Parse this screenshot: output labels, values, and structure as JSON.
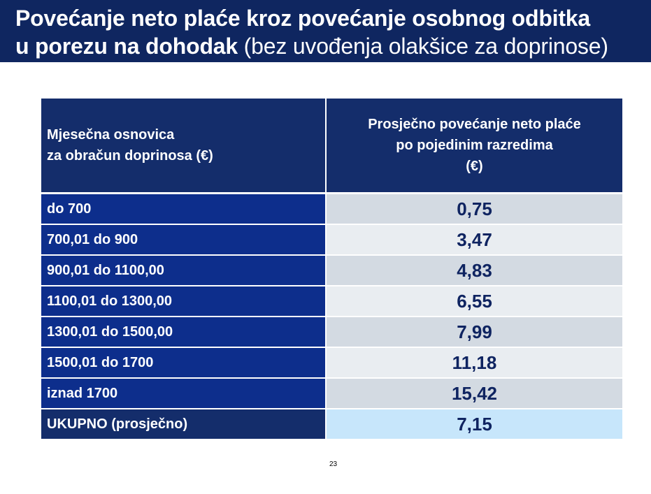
{
  "title": {
    "line1": "Povećanje neto plaće kroz povećanje osobnog odbitka",
    "line2_bold": "u porezu na dohodak",
    "line2_normal": " (bez uvođenja olakšice za doprinose)"
  },
  "table": {
    "header_left_line1": "Mjesečna osnovica",
    "header_left_line2": "za obračun doprinosa (€)",
    "header_right_line1": "Prosječno povećanje neto plaće",
    "header_right_line2": "po pojedinim razredima",
    "header_right_line3": "(€)",
    "rows": [
      {
        "label": "do 700",
        "value": "0,75"
      },
      {
        "label": "700,01 do 900",
        "value": "3,47"
      },
      {
        "label": "900,01 do 1100,00",
        "value": "4,83"
      },
      {
        "label": "1100,01 do 1300,00",
        "value": "6,55"
      },
      {
        "label": "1300,01 do 1500,00",
        "value": "7,99"
      },
      {
        "label": "1500,01 do 1700",
        "value": "11,18"
      },
      {
        "label": "iznad 1700",
        "value": "15,42"
      }
    ],
    "total": {
      "label": "UKUPNO (prosječno)",
      "value": "7,15"
    }
  },
  "page_number": "23",
  "colors": {
    "title_bg": "#0f2660",
    "header_bg": "#142d6b",
    "label_bg": "#0d2e8c",
    "value_text": "#0f2461",
    "row_odd": "#d3dae2",
    "row_even": "#e9edf1",
    "total_value_bg": "#c7e6fb"
  }
}
